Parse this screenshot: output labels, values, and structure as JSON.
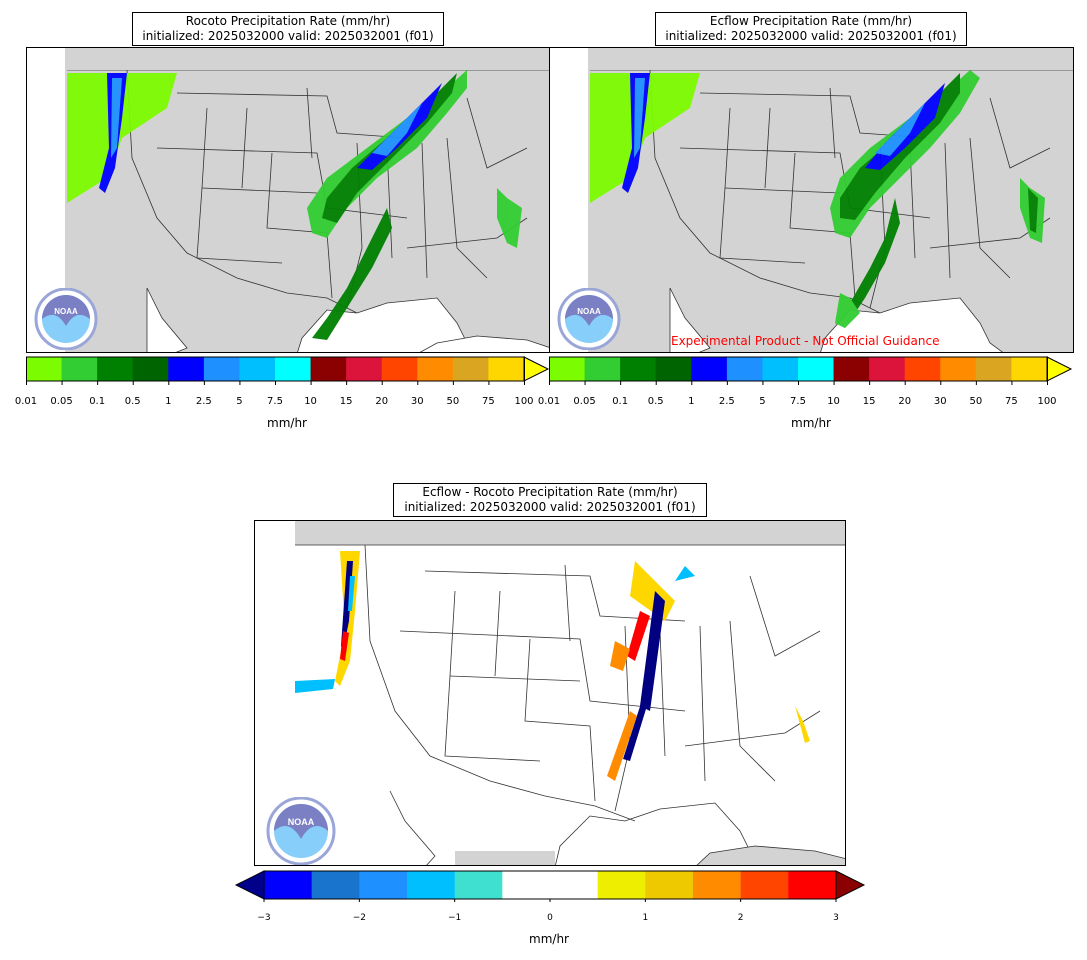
{
  "panels": [
    {
      "id": "rocoto",
      "title_line1": "Rocoto Precipitation Rate (mm/hr)",
      "title_line2": "initialized: 2025032000 valid: 2025032001 (f01)"
    },
    {
      "id": "ecflow",
      "title_line1": "Ecflow Precipitation Rate (mm/hr)",
      "title_line2": "initialized: 2025032000 valid: 2025032001 (f01)",
      "disclaimer": "Experimental Product - Not Official Guidance"
    },
    {
      "id": "diff",
      "title_line1": "Ecflow - Rocoto Precipitation Rate (mm/hr)",
      "title_line2": "initialized: 2025032000 valid: 2025032001 (f01)"
    }
  ],
  "precip_colorbar": {
    "unit": "mm/hr",
    "ticks": [
      "0.01",
      "0.05",
      "0.1",
      "0.5",
      "1",
      "2.5",
      "5",
      "7.5",
      "10",
      "15",
      "20",
      "30",
      "50",
      "75",
      "100"
    ],
    "colors": [
      "#7cfc00",
      "#32cd32",
      "#008000",
      "#006400",
      "#0000ff",
      "#1e90ff",
      "#00bfff",
      "#00ffff",
      "#8b0000",
      "#dc143c",
      "#ff4500",
      "#ff8c00",
      "#daa520",
      "#ffd700"
    ],
    "extend_color": "#ffff00"
  },
  "diff_colorbar": {
    "unit": "mm/hr",
    "ticks": [
      "−3",
      "−2",
      "−1",
      "0",
      "1",
      "2",
      "3"
    ],
    "colors": [
      "#0000ff",
      "#1874cd",
      "#1e90ff",
      "#00bfff",
      "#40e0d0",
      "#ffffff",
      "#ffffff",
      "#eeee00",
      "#eec900",
      "#ff8c00",
      "#ff4500",
      "#ff0000"
    ],
    "under_color": "#00008b",
    "over_color": "#8b0000"
  },
  "logo": {
    "icon": "noaa-logo",
    "text": "NOAA",
    "ring_text": "NATIONAL OCEANIC AND ATMOSPHERIC ADMINISTRATION · U.S. DEPARTMENT OF COMMERCE"
  },
  "colors": {
    "land": "#d3d3d3",
    "border": "#000000",
    "state_lines": "#333333",
    "disclaimer": "#ff0000"
  }
}
